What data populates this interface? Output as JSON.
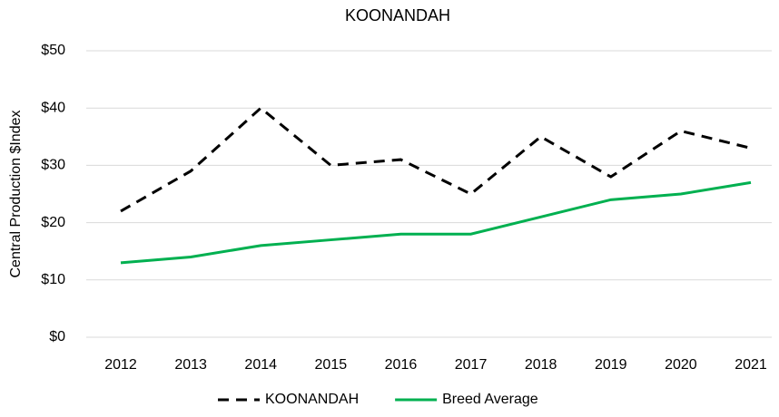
{
  "chart_data": {
    "type": "line",
    "title": "KOONANDAH",
    "ylabel": "Central Production $Index",
    "categories": [
      "2012",
      "2013",
      "2014",
      "2015",
      "2016",
      "2017",
      "2018",
      "2019",
      "2020",
      "2021"
    ],
    "series": [
      {
        "name": "KOONANDAH",
        "color": "#000000",
        "dashed": true,
        "values": [
          22,
          29,
          40,
          30,
          31,
          25,
          35,
          28,
          36,
          33
        ]
      },
      {
        "name": "Breed Average",
        "color": "#00b050",
        "dashed": false,
        "values": [
          13,
          14,
          16,
          17,
          18,
          18,
          21,
          24,
          25,
          27
        ]
      }
    ],
    "ylim": [
      0,
      50
    ],
    "yticks": [
      {
        "value": 0,
        "label": "$0"
      },
      {
        "value": 10,
        "label": "$10"
      },
      {
        "value": 20,
        "label": "$20"
      },
      {
        "value": 30,
        "label": "$30"
      },
      {
        "value": 40,
        "label": "$40"
      },
      {
        "value": 50,
        "label": "$50"
      }
    ],
    "grid": true,
    "legend": "bottom"
  }
}
